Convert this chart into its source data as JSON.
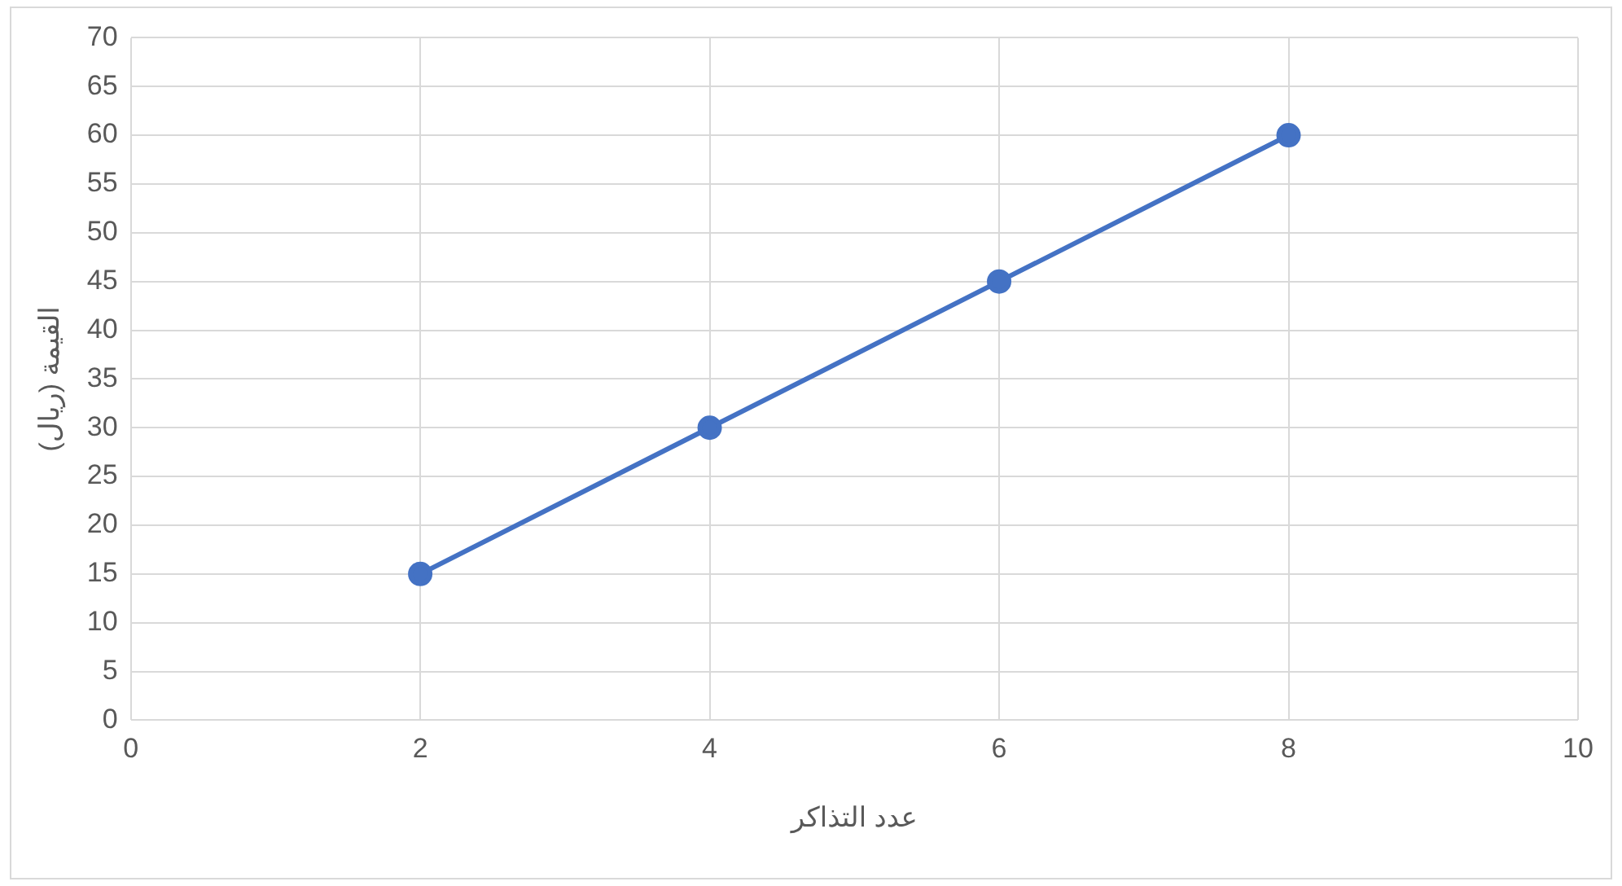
{
  "chart_data": {
    "type": "line",
    "xlabel": "عدد التذاكر",
    "ylabel": "القيمة (ريال)",
    "x": [
      2,
      4,
      6,
      8
    ],
    "series": [
      {
        "color": "#4472c4",
        "values": [
          15,
          30,
          45,
          60
        ]
      }
    ],
    "xlim": [
      0,
      10
    ],
    "xticks": [
      0,
      2,
      4,
      6,
      8,
      10
    ],
    "ylim": [
      0,
      70
    ],
    "yticks": [
      0,
      5,
      10,
      15,
      20,
      25,
      30,
      35,
      40,
      45,
      50,
      55,
      60,
      65,
      70
    ],
    "grid": true,
    "marker": "circle",
    "line_style": "solid",
    "legend": false
  }
}
